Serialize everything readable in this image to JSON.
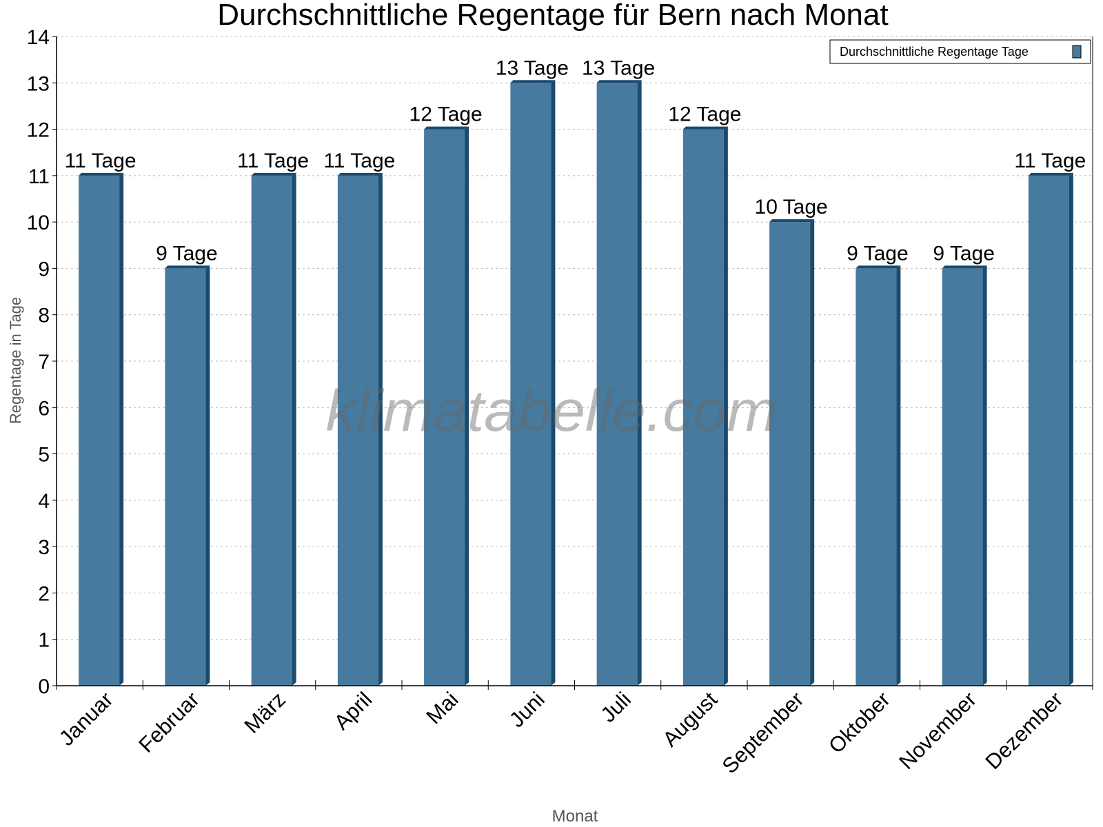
{
  "chart_data": {
    "type": "bar",
    "title": "Durchschnittliche Regentage für Bern nach Monat",
    "xlabel": "Monat",
    "ylabel": "Regentage in Tage",
    "categories": [
      "Januar",
      "Februar",
      "März",
      "April",
      "Mai",
      "Juni",
      "Juli",
      "August",
      "September",
      "Oktober",
      "November",
      "Dezember"
    ],
    "series": [
      {
        "name": "Durchschnittliche Regentage Tage",
        "values": [
          11,
          9,
          11,
          11,
          12,
          13,
          13,
          12,
          10,
          9,
          9,
          11
        ]
      }
    ],
    "data_labels": [
      "11 Tage",
      "9 Tage",
      "11 Tage",
      "11 Tage",
      "12 Tage",
      "13 Tage",
      "13 Tage",
      "12 Tage",
      "10 Tage",
      "9 Tage",
      "9 Tage",
      "11 Tage"
    ],
    "ylim": [
      0,
      14
    ],
    "yticks": [
      "0",
      "1",
      "2",
      "3",
      "4",
      "5",
      "6",
      "7",
      "8",
      "9",
      "10",
      "11",
      "12",
      "13",
      "14"
    ],
    "grid": true,
    "legend_position": "top-right",
    "watermark": "klimatabelle.com",
    "colors": {
      "bar": "#467a9e",
      "bar_side": "#1a4a6e"
    }
  }
}
